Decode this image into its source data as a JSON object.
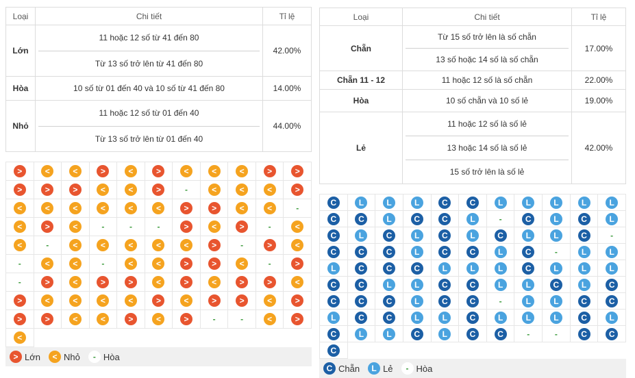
{
  "left": {
    "table": {
      "headers": [
        "Loại",
        "Chi tiết",
        "Tỉ lệ"
      ],
      "rows": [
        {
          "type": "Lớn",
          "details": [
            "11 hoặc 12 số từ 41 đến 80",
            "Từ 13 số trở lên từ 41 đến 80"
          ],
          "rate": "42.00%"
        },
        {
          "type": "Hòa",
          "details": [
            "10 số từ 01 đến 40 và 10 số từ 41 đến 80"
          ],
          "rate": "14.00%"
        },
        {
          "type": "Nhỏ",
          "details": [
            "11 hoặc 12 số từ 01 đến 40",
            "Từ 13 số trở lên từ 01 đến 40"
          ],
          "rate": "44.00%"
        }
      ]
    },
    "grid": [
      [
        ">",
        "<",
        "<",
        ">",
        "<",
        ">",
        "<",
        "<",
        "<",
        ">",
        ">"
      ],
      [
        ">",
        ">",
        ">",
        "<",
        "<",
        ">",
        "-",
        "<",
        "<",
        "<",
        ">"
      ],
      [
        "<",
        "<",
        "<",
        "<",
        "<",
        "<",
        ">",
        ">",
        "<",
        "<",
        "-"
      ],
      [
        "<",
        ">",
        "<",
        "-",
        "-",
        "-",
        ">",
        "<",
        ">",
        "-",
        "<"
      ],
      [
        "<",
        "-",
        "<",
        "<",
        "<",
        "<",
        "<",
        ">",
        "-",
        ">",
        "<"
      ],
      [
        "-",
        "<",
        "<",
        "-",
        "<",
        "<",
        ">",
        ">",
        "<",
        "-",
        ">"
      ],
      [
        "-",
        ">",
        "<",
        ">",
        ">",
        "<",
        ">",
        "<",
        ">",
        ">",
        "<"
      ],
      [
        ">",
        "<",
        "<",
        "<",
        "<",
        ">",
        "<",
        ">",
        ">",
        "<",
        ">"
      ],
      [
        ">",
        ">",
        "<",
        "<",
        ">",
        "<",
        ">",
        "-",
        "-",
        "<",
        ">"
      ],
      [
        "<"
      ]
    ],
    "legend": [
      {
        "symbol": ">",
        "label": "Lớn",
        "color": "#e8552f",
        "text_color": "#ffffff"
      },
      {
        "symbol": "<",
        "label": "Nhỏ",
        "color": "#f5a31f",
        "text_color": "#ffffff"
      },
      {
        "symbol": "-",
        "label": "Hòa",
        "color": "#ffffff",
        "text_color": "#3a9a3a"
      }
    ]
  },
  "right": {
    "table": {
      "headers": [
        "Loại",
        "Chi tiết",
        "Tỉ lệ"
      ],
      "rows": [
        {
          "type": "Chẵn",
          "details": [
            "Từ 15 số trở lên là số chẵn",
            "13 số hoặc 14 số là số chẵn"
          ],
          "rate": "17.00%"
        },
        {
          "type": "Chẵn 11 - 12",
          "details": [
            "11 hoặc 12 số là số chẵn"
          ],
          "rate": "22.00%"
        },
        {
          "type": "Hòa",
          "details": [
            "10 số chẵn và 10 số lẻ"
          ],
          "rate": "19.00%"
        },
        {
          "type": "Lẻ",
          "details": [
            "11 hoặc 12 số là số lẻ",
            "13 hoặc 14 số là số lẻ",
            "15 số trở lên là số lẻ"
          ],
          "rate": "42.00%"
        }
      ]
    },
    "grid": [
      [
        "C",
        "L",
        "L",
        "L",
        "C",
        "C",
        "L",
        "L",
        "L",
        "L",
        "L"
      ],
      [
        "C",
        "C",
        "L",
        "C",
        "C",
        "L",
        "-",
        "C",
        "L",
        "C",
        "L"
      ],
      [
        "C",
        "L",
        "C",
        "L",
        "C",
        "L",
        "C",
        "L",
        "L",
        "C",
        "-"
      ],
      [
        "C",
        "C",
        "C",
        "L",
        "C",
        "C",
        "L",
        "C",
        "-",
        "L",
        "L"
      ],
      [
        "L",
        "C",
        "C",
        "C",
        "L",
        "L",
        "L",
        "C",
        "L",
        "L",
        "L"
      ],
      [
        "C",
        "C",
        "L",
        "L",
        "C",
        "C",
        "L",
        "L",
        "C",
        "L",
        "C"
      ],
      [
        "C",
        "C",
        "C",
        "L",
        "C",
        "C",
        "-",
        "L",
        "L",
        "C",
        "C"
      ],
      [
        "L",
        "C",
        "C",
        "L",
        "L",
        "C",
        "L",
        "L",
        "L",
        "C",
        "L"
      ],
      [
        "C",
        "L",
        "L",
        "C",
        "L",
        "C",
        "C",
        "-",
        "-",
        "C",
        "C"
      ],
      [
        "C"
      ]
    ],
    "legend": [
      {
        "symbol": "C",
        "label": "Chẵn",
        "color": "#1c5fa5",
        "text_color": "#ffffff"
      },
      {
        "symbol": "L",
        "label": "Lẻ",
        "color": "#4aa3df",
        "text_color": "#ffffff"
      },
      {
        "symbol": "-",
        "label": "Hòa",
        "color": "#ffffff",
        "text_color": "#3a9a3a"
      }
    ]
  }
}
